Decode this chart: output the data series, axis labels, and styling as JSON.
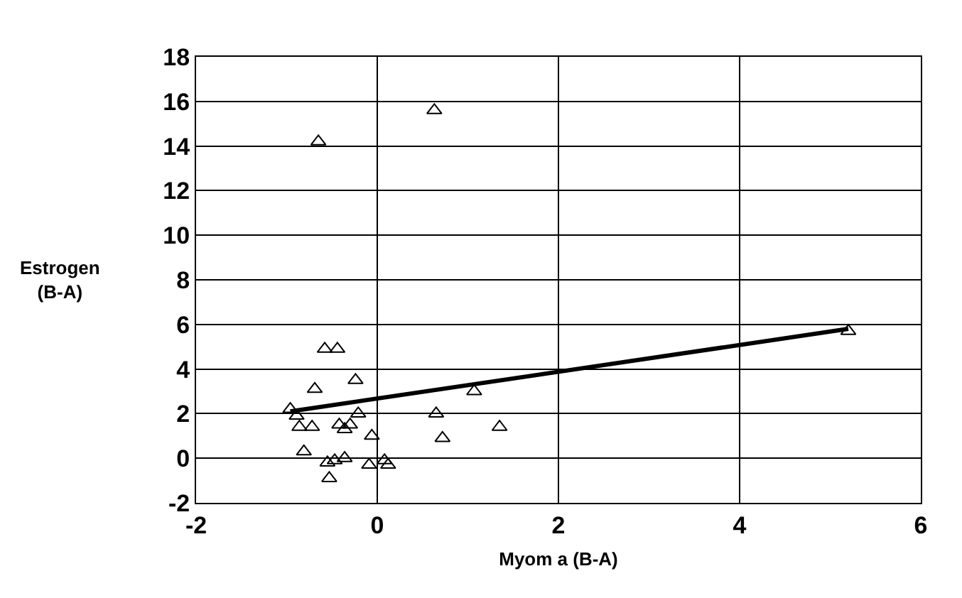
{
  "chart_data": {
    "type": "scatter",
    "xlabel": "Myom a (B-A)",
    "ylabel": "Estrogen\n(B-A)",
    "xlim": [
      -2,
      6
    ],
    "xticks": [
      -2,
      0,
      2,
      4,
      6
    ],
    "ylim": [
      -2,
      18
    ],
    "yticks": [
      -2,
      0,
      2,
      4,
      6,
      8,
      10,
      12,
      14,
      16,
      18
    ],
    "grid": true,
    "legend": false,
    "marker": "triangle",
    "series": [
      {
        "color": "#000000",
        "x": [
          0.63,
          -0.65,
          5.2,
          -0.58,
          -0.44,
          -0.24,
          -0.69,
          1.07,
          -0.96,
          -0.89,
          -0.21,
          0.65,
          -0.86,
          -0.72,
          -0.42,
          -0.36,
          -0.3,
          -0.06,
          0.72,
          1.35,
          -0.81,
          -0.55,
          -0.47,
          -0.36,
          -0.53,
          -0.09,
          0.08,
          0.12
        ],
        "values": [
          15.6,
          14.2,
          5.7,
          4.9,
          4.9,
          3.5,
          3.1,
          3.0,
          2.2,
          1.9,
          2.0,
          2.0,
          1.4,
          1.4,
          1.5,
          1.3,
          1.5,
          1.0,
          0.9,
          1.4,
          0.3,
          -0.2,
          -0.1,
          0.0,
          -0.9,
          -0.3,
          -0.1,
          -0.3
        ]
      },
      {
        "type": "line",
        "marker": "none",
        "color": "#000000",
        "x": [
          -0.96,
          5.2
        ],
        "values": [
          2.1,
          5.8
        ]
      }
    ]
  }
}
